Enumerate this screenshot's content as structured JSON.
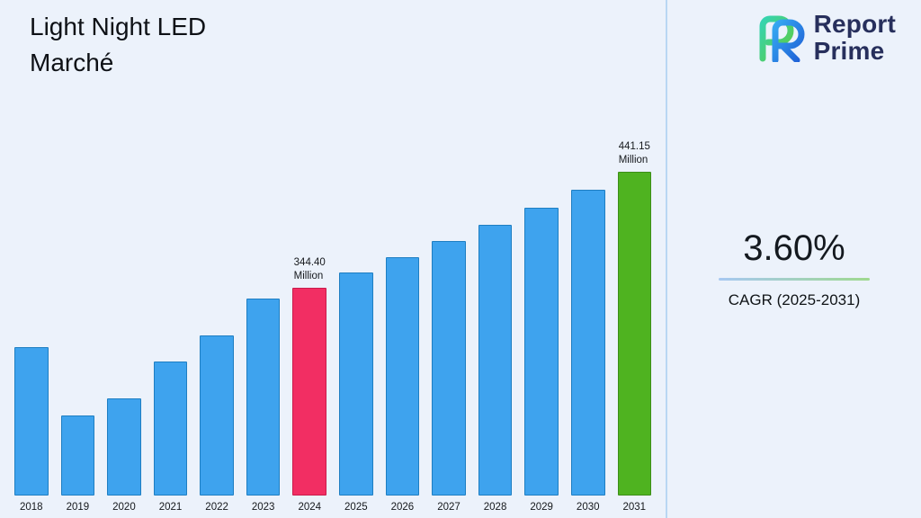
{
  "title": {
    "line1": "Light Night LED",
    "line2": "Marché"
  },
  "logo": {
    "line1": "Report",
    "line2": "Prime"
  },
  "stat": {
    "value": "3.60%",
    "label": "CAGR (2025-2031)"
  },
  "colors": {
    "background": "#ECF2FB",
    "divider": "#B9D7F3",
    "accent_blue": "#3EA3EE",
    "accent_pink": "#F22E63",
    "accent_green": "#4FB320",
    "logo_navy": "#272F5C"
  },
  "chart_data": {
    "type": "bar",
    "title": "Light Night LED Marché",
    "categories": [
      "2018",
      "2019",
      "2020",
      "2021",
      "2022",
      "2023",
      "2024",
      "2025",
      "2026",
      "2027",
      "2028",
      "2029",
      "2030",
      "2031"
    ],
    "values": [
      294,
      237,
      251,
      282,
      304,
      335,
      344.4,
      356.8,
      369.6,
      383.0,
      396.7,
      411.0,
      425.8,
      441.15
    ],
    "unit": "Million",
    "bar_color": "#3EA3EE",
    "bar_border_color": "#1E7EC2",
    "highlights": [
      {
        "index": 6,
        "year": "2024",
        "color": "#F22E63",
        "border_color": "#C91C4C",
        "label_lines": [
          "344.40",
          "Million"
        ]
      },
      {
        "index": 13,
        "year": "2031",
        "color": "#4FB320",
        "border_color": "#3C8E17",
        "label_lines": [
          "441.15",
          "Million"
        ]
      }
    ],
    "ylim": [
      170,
      445
    ],
    "xlabel": "",
    "ylabel": "",
    "grid": false,
    "legend": null
  }
}
